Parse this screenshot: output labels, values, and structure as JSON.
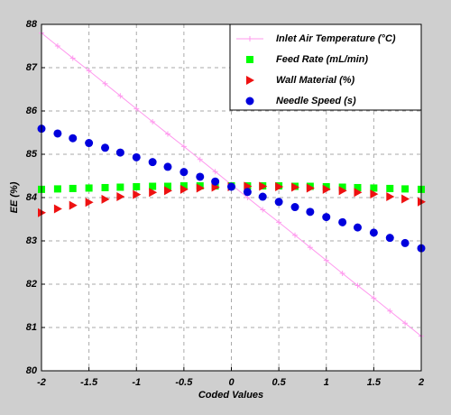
{
  "chart_data": {
    "type": "line",
    "xlabel": "Coded Values",
    "ylabel": "EE (%)",
    "x": [
      -2,
      -1.83,
      -1.67,
      -1.5,
      -1.33,
      -1.17,
      -1,
      -0.83,
      -0.67,
      -0.5,
      -0.33,
      -0.17,
      0,
      0.17,
      0.33,
      0.5,
      0.67,
      0.83,
      1,
      1.17,
      1.33,
      1.5,
      1.67,
      1.83,
      2
    ],
    "xlim": [
      -2,
      2
    ],
    "xticks": [
      -2,
      -1.5,
      -1,
      -0.5,
      0,
      0.5,
      1,
      1.5,
      2
    ],
    "ylim": [
      80,
      88
    ],
    "yticks": [
      80,
      81,
      82,
      83,
      84,
      85,
      86,
      87,
      88
    ],
    "grid": true,
    "legend": "upper right",
    "series": [
      {
        "name": "Inlet Air Temperature (°C)",
        "color": "#ff99ee",
        "marker": "plus",
        "line": true,
        "values": [
          87.8,
          87.5,
          87.22,
          86.93,
          86.63,
          86.35,
          86.05,
          85.75,
          85.47,
          85.18,
          84.88,
          84.6,
          84.3,
          84.0,
          83.72,
          83.43,
          83.13,
          82.85,
          82.55,
          82.25,
          81.97,
          81.68,
          81.38,
          81.1,
          80.8
        ]
      },
      {
        "name": "Feed Rate (mL/min)",
        "color": "#00ff00",
        "marker": "square",
        "line": false,
        "values": [
          84.19,
          84.2,
          84.21,
          84.22,
          84.23,
          84.24,
          84.25,
          84.26,
          84.26,
          84.27,
          84.27,
          84.27,
          84.27,
          84.27,
          84.27,
          84.27,
          84.26,
          84.26,
          84.25,
          84.24,
          84.23,
          84.22,
          84.21,
          84.2,
          84.19
        ]
      },
      {
        "name": "Wall Material (%)",
        "color": "#ee1111",
        "marker": "triangle-right",
        "line": false,
        "values": [
          83.65,
          83.74,
          83.82,
          83.89,
          83.96,
          84.02,
          84.07,
          84.12,
          84.16,
          84.19,
          84.22,
          84.24,
          84.25,
          84.26,
          84.26,
          84.25,
          84.24,
          84.22,
          84.19,
          84.16,
          84.12,
          84.08,
          84.02,
          83.97,
          83.9
        ]
      },
      {
        "name": "Needle Speed (s)",
        "color": "#0000dd",
        "marker": "circle",
        "line": false,
        "values": [
          85.59,
          85.48,
          85.37,
          85.26,
          85.15,
          85.04,
          84.93,
          84.82,
          84.71,
          84.59,
          84.48,
          84.37,
          84.25,
          84.13,
          84.02,
          83.9,
          83.78,
          83.67,
          83.55,
          83.43,
          83.31,
          83.19,
          83.07,
          82.95,
          82.83
        ]
      }
    ]
  }
}
